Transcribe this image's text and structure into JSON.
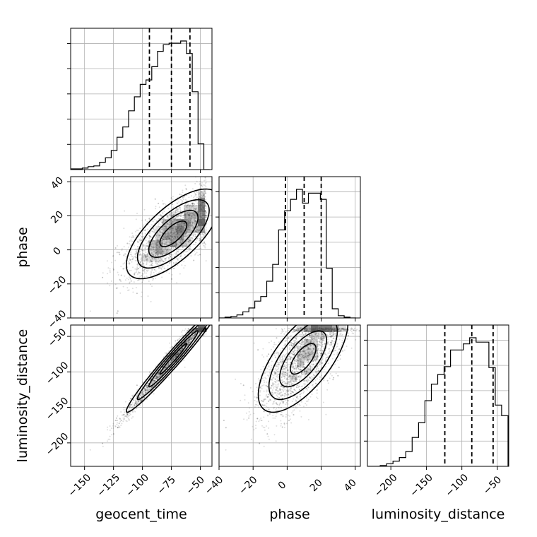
{
  "chart_data": {
    "type": "corner",
    "parameters": [
      "geocent_time",
      "phase",
      "luminosity_distance"
    ],
    "labels": {
      "geocent_time": "geocent_time",
      "phase": "phase",
      "luminosity_distance": "luminosity_distance"
    },
    "ranges": {
      "geocent_time": [
        -162,
        -40
      ],
      "phase": [
        -40,
        43
      ],
      "luminosity_distance": [
        -233,
        -34
      ]
    },
    "ticks": {
      "geocent_time": [
        -150,
        -125,
        -100,
        -75,
        -50
      ],
      "phase": [
        -40,
        -20,
        0,
        20,
        40
      ],
      "luminosity_distance": [
        -200,
        -150,
        -100,
        -50
      ]
    },
    "tick_labels": {
      "geocent_time": [
        "−150",
        "−125",
        "−100",
        "−75",
        "−50"
      ],
      "phase": [
        "−40",
        "−20",
        "0",
        "20",
        "40"
      ],
      "luminosity_distance": [
        "−200",
        "−150",
        "−100",
        "−50"
      ]
    },
    "quantile_lines": {
      "geocent_time": [
        -94,
        -75,
        -59
      ],
      "phase": [
        -1,
        10,
        20
      ],
      "luminosity_distance": [
        -124,
        -86,
        -56
      ]
    },
    "histograms": {
      "geocent_time": {
        "edges": [
          -162,
          -157,
          -152,
          -147,
          -142,
          -137,
          -132,
          -127,
          -122,
          -117,
          -112,
          -107,
          -102,
          -97,
          -92,
          -87,
          -82,
          -77,
          -72,
          -67,
          -62,
          -57,
          -52,
          -47,
          -42
        ],
        "counts": [
          1,
          1,
          2,
          4,
          5,
          10,
          16,
          26,
          44,
          58,
          80,
          99,
          116,
          122,
          140,
          161,
          170,
          172,
          172,
          175,
          158,
          106,
          35,
          0
        ]
      },
      "phase": {
        "edges": [
          -40,
          -36.5,
          -33,
          -29.5,
          -26,
          -22.5,
          -19,
          -15.5,
          -12,
          -8.5,
          -5,
          -1.5,
          2,
          5.5,
          9,
          12.5,
          16,
          19.5,
          23,
          26.5,
          30,
          33.5,
          37,
          40.5
        ],
        "counts": [
          0,
          1,
          2,
          4,
          8,
          13,
          22,
          28,
          48,
          70,
          115,
          140,
          155,
          168,
          150,
          163,
          163,
          155,
          65,
          12,
          3,
          1,
          0
        ]
      },
      "luminosity_distance": {
        "edges": [
          -233,
          -224,
          -215,
          -206,
          -197,
          -188,
          -179,
          -170,
          -161,
          -152,
          -143,
          -134,
          -125,
          -116,
          -107,
          -98,
          -89,
          -80,
          -71,
          -62,
          -53,
          -44,
          -35
        ],
        "counts": [
          0,
          0,
          1,
          3,
          6,
          10,
          17,
          33,
          50,
          75,
          94,
          105,
          114,
          133,
          133,
          140,
          147,
          142,
          142,
          113,
          70,
          58
        ]
      }
    },
    "samples": {
      "seed": 7,
      "count": 2600
    },
    "grid": true,
    "line_color": "#000000",
    "density_color": "#555555"
  }
}
